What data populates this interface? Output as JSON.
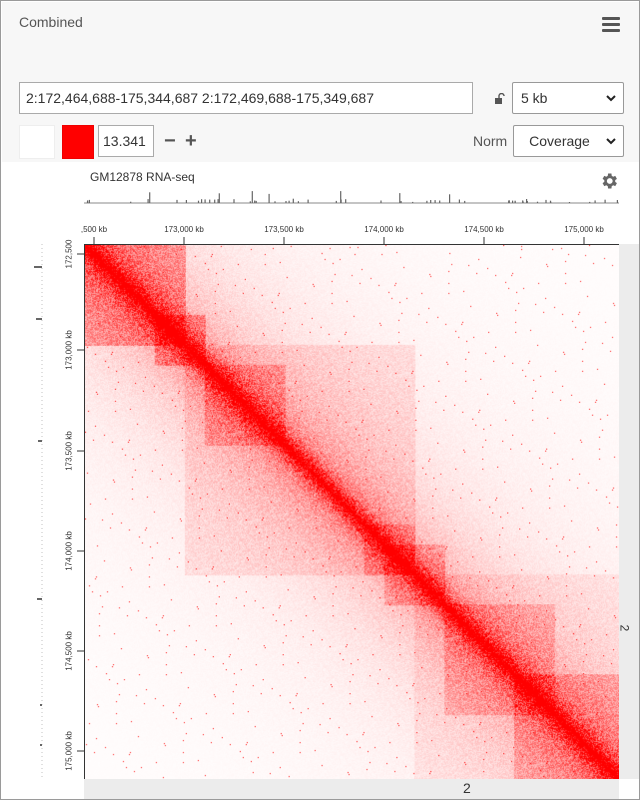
{
  "header": {
    "title": "Combined",
    "menu_icon": "hamburger-menu-icon"
  },
  "locus": {
    "value": "2:172,464,688-175,344,687 2:172,469,688-175,349,687"
  },
  "resolution": {
    "selected": "5 kb",
    "lock_icon": "unlock-icon"
  },
  "colorscale": {
    "min_color": "#ffffff",
    "max_color": "#ff0000",
    "max_value": "13.341",
    "minus_label": "−",
    "plus_label": "+"
  },
  "normalization": {
    "label": "Norm",
    "selected": "Coverage"
  },
  "track": {
    "name": "GM12878 RNA-seq",
    "settings_icon": "gear-icon"
  },
  "x_ruler": {
    "ticks": [
      ",500 kb",
      "173,000 kb",
      "173,500 kb",
      "174,000 kb",
      "174,500 kb",
      "175,000 kb"
    ]
  },
  "y_ruler": {
    "ticks": [
      "172,500",
      "173,000 kb",
      "173,500 kb",
      "174,000 kb",
      "174,500 kb",
      "175,000 kb"
    ]
  },
  "chromosome": {
    "x_label": "2",
    "y_label": "2"
  },
  "colors": {
    "heatmap": "#ff0000",
    "track": "#555555"
  }
}
